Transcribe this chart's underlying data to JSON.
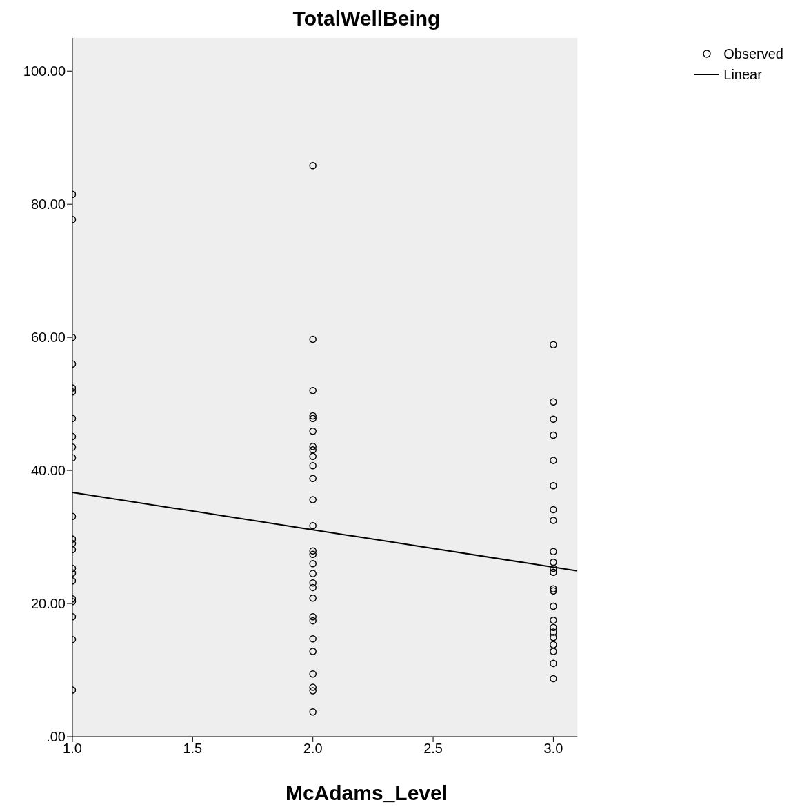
{
  "chart_data": {
    "type": "scatter",
    "title": "TotalWellBeing",
    "xlabel": "McAdams_Level",
    "legend": "top right",
    "grid": false,
    "xlim": [
      1,
      3.1
    ],
    "xticks": [
      {
        "value": 1,
        "label": "1.0"
      },
      {
        "value": 1.5,
        "label": "1.5"
      },
      {
        "value": 2,
        "label": "2.0"
      },
      {
        "value": 2.5,
        "label": "2.5"
      },
      {
        "value": 3,
        "label": "3.0"
      }
    ],
    "ylim": [
      0,
      105
    ],
    "yticks": [
      {
        "value": 0,
        "label": ".00"
      },
      {
        "value": 20,
        "label": "20.00"
      },
      {
        "value": 40,
        "label": "40.00"
      },
      {
        "value": 60,
        "label": "60.00"
      },
      {
        "value": 80,
        "label": "80.00"
      },
      {
        "value": 100,
        "label": "100.00"
      }
    ],
    "series": [
      {
        "name": "Observed",
        "marker": "circle",
        "color": "#000000",
        "x": [
          1,
          1,
          1,
          1,
          1,
          1,
          1,
          1,
          1,
          1,
          1,
          1,
          1,
          1,
          1,
          1,
          1,
          1,
          1,
          1,
          1,
          1,
          2,
          2,
          2,
          2,
          2,
          2,
          2,
          2,
          2,
          2,
          2,
          2,
          2,
          2,
          2,
          2,
          2,
          2,
          2,
          2,
          2,
          2,
          2,
          2,
          2,
          2,
          2,
          2,
          3,
          3,
          3,
          3,
          3,
          3,
          3,
          3,
          3,
          3,
          3,
          3,
          3,
          3,
          3,
          3,
          3,
          3,
          3,
          3,
          3,
          3,
          3
        ],
        "values": [
          81.5,
          77.7,
          60,
          56,
          52.4,
          51.8,
          47.8,
          45.1,
          43.5,
          41.9,
          33.1,
          29.7,
          29,
          28.1,
          25.3,
          24.6,
          23.4,
          20.7,
          20.3,
          18,
          14.6,
          7,
          85.8,
          59.7,
          52,
          48.2,
          47.8,
          45.9,
          43.6,
          43.1,
          42.1,
          40.7,
          38.8,
          35.6,
          31.7,
          27.9,
          27.4,
          26,
          24.5,
          23.1,
          22.4,
          20.8,
          18,
          17.4,
          14.7,
          12.8,
          9.4,
          7.4,
          6.9,
          3.7,
          58.9,
          50.3,
          47.7,
          45.3,
          41.5,
          37.7,
          34.1,
          32.5,
          27.8,
          26.2,
          25.3,
          24.7,
          22.2,
          21.9,
          19.6,
          17.5,
          16.4,
          15.7,
          14.9,
          13.8,
          12.8,
          11,
          8.7
        ]
      },
      {
        "name": "Linear",
        "type": "line",
        "marker": "none",
        "color": "#000000",
        "x": [
          1,
          3.1
        ],
        "values": [
          36.7,
          24.9
        ]
      }
    ]
  }
}
